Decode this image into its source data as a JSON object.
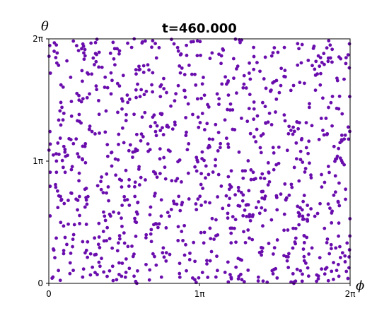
{
  "chart_data": {
    "type": "scatter",
    "title": "t=460.000",
    "xlabel": "ϕ",
    "ylabel": "θ",
    "xlim": [
      0,
      2
    ],
    "ylim": [
      0,
      2
    ],
    "units": "π",
    "x_ticks": [
      {
        "value": 0,
        "label": "0"
      },
      {
        "value": 1,
        "label": "1π"
      },
      {
        "value": 2,
        "label": "2π"
      }
    ],
    "y_ticks": [
      {
        "value": 0,
        "label": "0"
      },
      {
        "value": 1,
        "label": "1π"
      },
      {
        "value": 2,
        "label": "2π"
      }
    ],
    "grid": false,
    "legend": "none",
    "marker_color": "#6a0dad",
    "approx_point_count": 1000,
    "distribution": "approximately uniform over [0,2π]×[0,2π]",
    "series": [
      {
        "values": [
          [
            0.05,
            1.95
          ],
          [
            0.12,
            1.82
          ],
          [
            0.22,
            1.74
          ],
          [
            0.31,
            1.88
          ],
          [
            0.42,
            1.66
          ],
          [
            0.55,
            1.93
          ],
          [
            0.63,
            1.78
          ],
          [
            0.74,
            1.61
          ],
          [
            0.86,
            1.9
          ],
          [
            0.95,
            1.71
          ],
          [
            1.07,
            1.84
          ],
          [
            1.18,
            1.63
          ],
          [
            1.27,
            1.97
          ],
          [
            1.36,
            1.75
          ],
          [
            1.48,
            1.86
          ],
          [
            1.57,
            1.69
          ],
          [
            1.66,
            1.92
          ],
          [
            1.77,
            1.58
          ],
          [
            1.88,
            1.81
          ],
          [
            1.96,
            1.67
          ],
          [
            0.08,
            1.48
          ],
          [
            0.19,
            1.33
          ],
          [
            0.27,
            1.55
          ],
          [
            0.38,
            1.41
          ],
          [
            0.49,
            1.27
          ],
          [
            0.58,
            1.52
          ],
          [
            0.69,
            1.36
          ],
          [
            0.81,
            1.45
          ],
          [
            0.91,
            1.21
          ],
          [
            1.02,
            1.39
          ],
          [
            1.13,
            1.51
          ],
          [
            1.22,
            1.26
          ],
          [
            1.33,
            1.43
          ],
          [
            1.44,
            1.31
          ],
          [
            1.53,
            1.56
          ],
          [
            1.62,
            1.22
          ],
          [
            1.73,
            1.47
          ],
          [
            1.84,
            1.35
          ],
          [
            1.93,
            1.53
          ],
          [
            1.99,
            1.18
          ],
          [
            0.03,
            1.05
          ],
          [
            0.15,
            0.93
          ],
          [
            0.24,
            1.12
          ],
          [
            0.35,
            0.87
          ],
          [
            0.46,
            1.01
          ],
          [
            0.57,
            0.79
          ],
          [
            0.66,
            1.08
          ],
          [
            0.77,
            0.95
          ],
          [
            0.88,
            0.83
          ],
          [
            0.98,
            1.03
          ],
          [
            1.09,
            0.91
          ],
          [
            1.19,
            1.14
          ],
          [
            1.29,
            0.86
          ],
          [
            1.41,
            1.07
          ],
          [
            1.51,
            0.97
          ],
          [
            1.61,
            0.81
          ],
          [
            1.71,
            1.11
          ],
          [
            1.81,
            0.89
          ],
          [
            1.91,
            1.02
          ],
          [
            1.97,
            0.77
          ],
          [
            0.06,
            0.62
          ],
          [
            0.17,
            0.48
          ],
          [
            0.26,
            0.71
          ],
          [
            0.37,
            0.55
          ],
          [
            0.47,
            0.39
          ],
          [
            0.59,
            0.66
          ],
          [
            0.68,
            0.44
          ],
          [
            0.79,
            0.58
          ],
          [
            0.89,
            0.35
          ],
          [
            0.99,
            0.69
          ],
          [
            1.11,
            0.52
          ],
          [
            1.21,
            0.41
          ],
          [
            1.31,
            0.64
          ],
          [
            1.42,
            0.47
          ],
          [
            1.54,
            0.73
          ],
          [
            1.64,
            0.37
          ],
          [
            1.74,
            0.61
          ],
          [
            1.83,
            0.45
          ],
          [
            1.92,
            0.67
          ],
          [
            1.98,
            0.33
          ],
          [
            0.04,
            0.21
          ],
          [
            0.14,
            0.08
          ],
          [
            0.25,
            0.27
          ],
          [
            0.34,
            0.14
          ],
          [
            0.45,
            0.03
          ],
          [
            0.56,
            0.22
          ],
          [
            0.67,
            0.11
          ],
          [
            0.76,
            0.29
          ],
          [
            0.87,
            0.05
          ],
          [
            0.97,
            0.18
          ],
          [
            1.08,
            0.26
          ],
          [
            1.17,
            0.09
          ],
          [
            1.28,
            0.19
          ],
          [
            1.39,
            0.02
          ],
          [
            1.49,
            0.24
          ],
          [
            1.59,
            0.13
          ],
          [
            1.69,
            0.28
          ],
          [
            1.79,
            0.06
          ],
          [
            1.89,
            0.17
          ],
          [
            1.95,
            0.25
          ]
        ]
      }
    ]
  }
}
